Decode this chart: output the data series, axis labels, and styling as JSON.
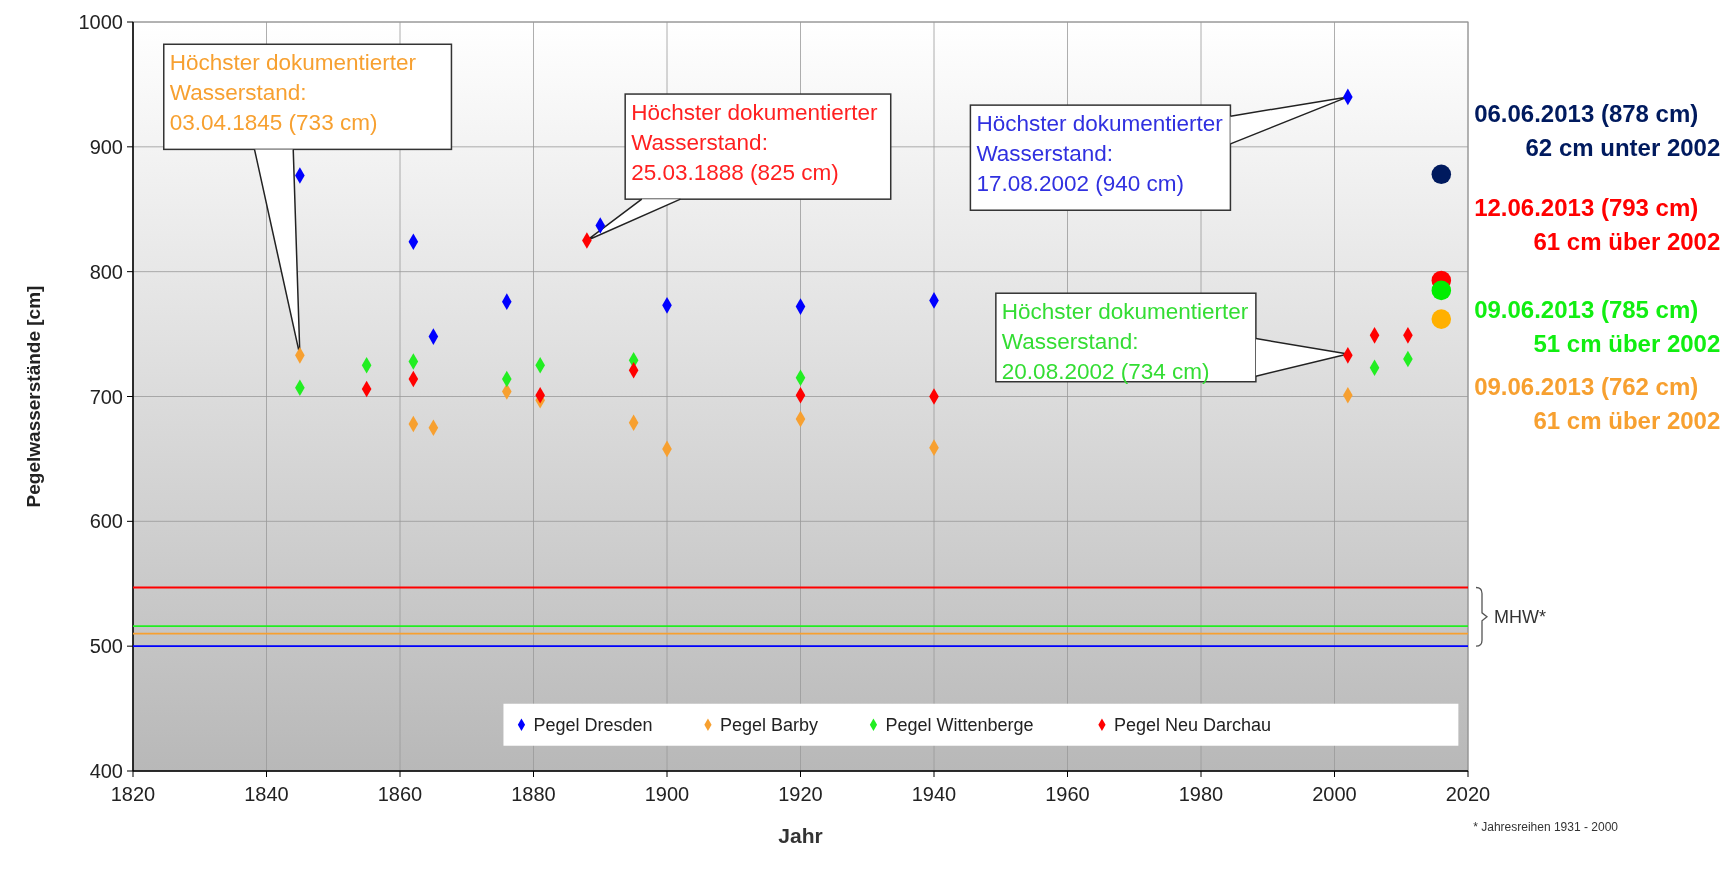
{
  "chart_data": {
    "type": "scatter",
    "xlabel": "Jahr",
    "ylabel": "Pegelwasserstände [cm]",
    "xlim": [
      1820,
      2020
    ],
    "xticks": [
      1820,
      1840,
      1860,
      1880,
      1900,
      1920,
      1940,
      1960,
      1980,
      2000,
      2020
    ],
    "ylim": [
      400,
      1000
    ],
    "yticks": [
      400,
      500,
      600,
      700,
      800,
      900,
      1000
    ],
    "grid": true,
    "legend": "bottom right",
    "marker": "diamond",
    "series": [
      {
        "name": "Pegel Dresden",
        "color": "#0000ff",
        "x": [
          1845,
          1862,
          1865,
          1876,
          1890,
          1900,
          1920,
          1940,
          2002
        ],
        "values": [
          877,
          824,
          748,
          776,
          837,
          773,
          772,
          777,
          940
        ]
      },
      {
        "name": "Pegel Barby",
        "color": "#f7a030",
        "x": [
          1845,
          1862,
          1865,
          1876,
          1881,
          1895,
          1900,
          1920,
          1940,
          2002
        ],
        "values": [
          733,
          678,
          675,
          704,
          697,
          679,
          658,
          682,
          659,
          701
        ]
      },
      {
        "name": "Pegel Wittenberge",
        "color": "#22ee22",
        "x": [
          1845,
          1855,
          1862,
          1876,
          1881,
          1895,
          1920,
          2006,
          2011
        ],
        "values": [
          707,
          725,
          728,
          714,
          725,
          729,
          715,
          723,
          730
        ]
      },
      {
        "name": "Pegel Neu Darchau",
        "color": "#ff0000",
        "x": [
          1855,
          1862,
          1881,
          1888,
          1895,
          1920,
          1940,
          2002,
          2006,
          2011
        ],
        "values": [
          706,
          714,
          701,
          825,
          721,
          701,
          700,
          733,
          749,
          749
        ]
      },
      {
        "type": "scatter",
        "marker": "circle",
        "x": [
          2016,
          2016,
          2016,
          2016
        ],
        "values": [
          878,
          793,
          785,
          762
        ],
        "colors": [
          "#001a5e",
          "#ff0000",
          "#00ee00",
          "#ffb000"
        ]
      }
    ],
    "ref_lines": [
      {
        "axis": "y",
        "value": 547,
        "color": "#ff0000"
      },
      {
        "axis": "y",
        "value": 516,
        "color": "#22ee22"
      },
      {
        "axis": "y",
        "value": 510,
        "color": "#f7a030"
      },
      {
        "axis": "y",
        "value": 500,
        "color": "#0000ff"
      }
    ],
    "annotations": [
      {
        "text": "Höchster dokumentierter\nWasserstand:\n03.04.1845 (733 cm)",
        "x": 1845,
        "y": 733
      },
      {
        "text": "Höchster dokumentierter\nWasserstand:\n25.03.1888 (825 cm)",
        "x": 1888,
        "y": 825
      },
      {
        "text": "Höchster dokumentierter\nWasserstand:\n17.08.2002 (940 cm)",
        "x": 2002,
        "y": 940
      },
      {
        "text": "Höchster dokumentierter\nWasserstand:\n20.08.2002 (734 cm)",
        "x": 2002,
        "y": 734
      },
      {
        "text": "06.06.2013 (878 cm)\n62 cm unter 2002",
        "x": 2016,
        "y": 878
      },
      {
        "text": "12.06.2013 (793 cm)\n61 cm  über 2002",
        "x": 2016,
        "y": 793
      },
      {
        "text": "09.06.2013 (785 cm)\n51 cm  über 2002",
        "x": 2016,
        "y": 785
      },
      {
        "text": "09.06.2013 (762 cm)\n61 cm  über 2002",
        "x": 2016,
        "y": 762
      },
      "MHW*",
      "* Jahresreihen 1931 - 2000"
    ]
  }
}
